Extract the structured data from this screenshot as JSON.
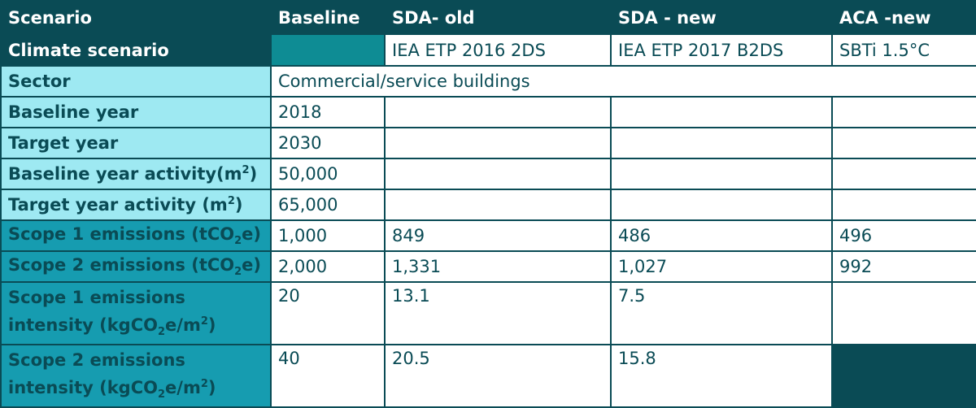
{
  "header": {
    "scenario": "Scenario",
    "baseline": "Baseline",
    "sda_old": "SDA- old",
    "sda_new": "SDA - new",
    "aca_new": "ACA -new"
  },
  "climate": {
    "label": "Climate scenario",
    "baseline": "",
    "sda_old": "IEA ETP 2016 2DS",
    "sda_new": "IEA ETP 2017 B2DS",
    "aca_new": "SBTi 1.5°C"
  },
  "rows": {
    "sector": {
      "label": "Sector",
      "value": "Commercial/service buildings"
    },
    "baseline_year": {
      "label": "Baseline year",
      "value": "2018"
    },
    "target_year": {
      "label": "Target year",
      "value": "2030"
    },
    "baseline_activity": {
      "label": "Baseline year activity(m",
      "sup": "2",
      "tail": ")",
      "value": "50,000"
    },
    "target_activity": {
      "label": "Target year activity (m",
      "sup": "2",
      "tail": ")",
      "value": "65,000"
    },
    "scope1": {
      "label": "Scope 1 emissions (tCO",
      "sub": "2",
      "tail": "e)",
      "baseline": "1,000",
      "sda_old": "849",
      "sda_new": "486",
      "aca_new": "496"
    },
    "scope2": {
      "label": "Scope 2 emissions (tCO",
      "sub": "2",
      "tail": "e)",
      "baseline": "2,000",
      "sda_old": "1,331",
      "sda_new": "1,027",
      "aca_new": "992"
    },
    "scope1_int": {
      "line1": "Scope 1 emissions",
      "line2a": "intensity (kgCO",
      "sub": "2",
      "line2b": "e/m",
      "sup": "2",
      "line2c": ")",
      "baseline": "20",
      "sda_old": "13.1",
      "sda_new": "7.5",
      "aca_new": ""
    },
    "scope2_int": {
      "line1": "Scope 2 emissions",
      "line2a": "intensity (kgCO",
      "sub": "2",
      "line2b": "e/m",
      "sup": "2",
      "line2c": ")",
      "baseline": "40",
      "sda_old": "20.5",
      "sda_new": "15.8",
      "aca_new": ""
    }
  },
  "colors": {
    "dark": "#0a4b55",
    "light": "#9ee9f2",
    "mid": "#169cb0",
    "teal": "#0e8c94"
  }
}
